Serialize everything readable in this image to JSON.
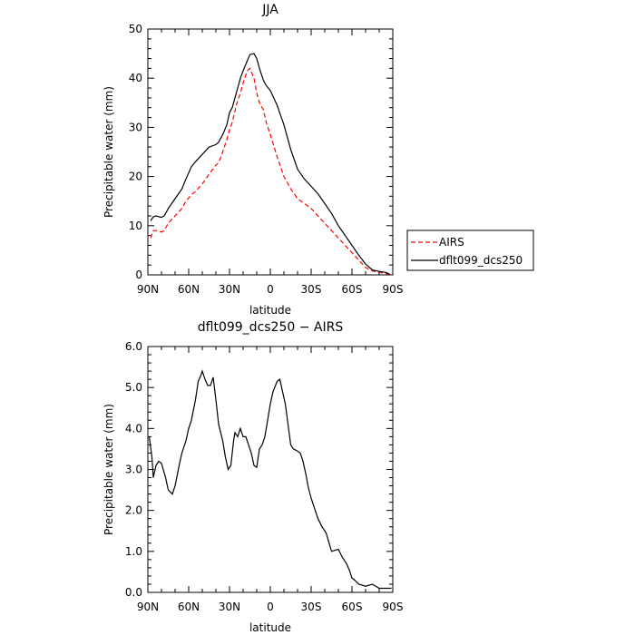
{
  "chart_data": [
    {
      "type": "line",
      "title": "JJA",
      "xlabel": "latitude",
      "ylabel": "Precipitable water (mm)",
      "xlim": [
        90,
        -90
      ],
      "ylim": [
        0,
        50
      ],
      "x_ticks": [
        90,
        60,
        30,
        0,
        -30,
        -60,
        -90
      ],
      "x_tick_labels": [
        "90N",
        "60N",
        "30N",
        "0",
        "30S",
        "60S",
        "90S"
      ],
      "y_ticks": [
        0,
        10,
        20,
        30,
        40,
        50
      ],
      "y_tick_labels": [
        "0",
        "10",
        "20",
        "30",
        "40",
        "50"
      ],
      "legend": {
        "placement": "outside-right",
        "entries": [
          "AIRS",
          "dflt099_dcs250"
        ]
      },
      "series": [
        {
          "name": "AIRS",
          "color": "#ff0000",
          "dash": "dashed",
          "x": [
            88,
            86,
            84,
            80,
            78,
            75,
            70,
            65,
            62,
            58,
            55,
            50,
            45,
            40,
            38,
            35,
            32,
            30,
            28,
            25,
            22,
            20,
            17,
            15,
            12,
            10,
            8,
            5,
            3,
            0,
            -5,
            -10,
            -15,
            -20,
            -25,
            -30,
            -35,
            -40,
            -45,
            -50,
            -55,
            -60,
            -65,
            -70,
            -75,
            -80,
            -85,
            -88
          ],
          "y": [
            7.5,
            9.0,
            9.0,
            8.7,
            9.0,
            10.5,
            12.0,
            13.5,
            15.0,
            16.3,
            17.0,
            18.5,
            20.5,
            22.3,
            22.8,
            25.0,
            27.5,
            29.5,
            31.0,
            34.5,
            37.0,
            39.0,
            41.5,
            42.0,
            40.0,
            37.0,
            35.0,
            33.5,
            31.0,
            28.5,
            24.0,
            20.0,
            17.5,
            15.5,
            14.5,
            13.5,
            12.0,
            10.5,
            9.0,
            7.5,
            6.0,
            4.5,
            3.0,
            1.5,
            0.8,
            0.5,
            0.3,
            0.0
          ]
        },
        {
          "name": "dflt099_dcs250",
          "color": "#000000",
          "dash": "solid",
          "x": [
            88,
            86,
            84,
            80,
            78,
            75,
            70,
            65,
            62,
            58,
            55,
            50,
            45,
            40,
            38,
            35,
            32,
            30,
            28,
            25,
            22,
            20,
            17,
            15,
            12,
            10,
            8,
            5,
            3,
            0,
            -5,
            -10,
            -15,
            -20,
            -25,
            -30,
            -35,
            -40,
            -45,
            -50,
            -55,
            -60,
            -65,
            -70,
            -75,
            -80,
            -85,
            -88
          ],
          "y": [
            11.0,
            11.8,
            12.0,
            11.7,
            12.0,
            13.5,
            15.5,
            17.5,
            19.5,
            22.0,
            23.0,
            24.5,
            26.0,
            26.5,
            27.0,
            28.5,
            30.5,
            33.0,
            34.0,
            37.0,
            40.0,
            41.5,
            43.5,
            44.8,
            45.0,
            44.0,
            42.0,
            39.5,
            38.5,
            37.5,
            34.5,
            30.5,
            25.5,
            21.5,
            19.5,
            18.0,
            16.5,
            14.5,
            12.5,
            10.0,
            8.0,
            6.0,
            4.0,
            2.2,
            1.0,
            0.7,
            0.5,
            0.1
          ]
        }
      ]
    },
    {
      "type": "line",
      "title": "dflt099_dcs250 − AIRS",
      "xlabel": "latitude",
      "ylabel": "Precipitable water (mm)",
      "xlim": [
        90,
        -90
      ],
      "ylim": [
        0,
        6
      ],
      "x_ticks": [
        90,
        60,
        30,
        0,
        -30,
        -60,
        -90
      ],
      "x_tick_labels": [
        "90N",
        "60N",
        "30N",
        "0",
        "30S",
        "60S",
        "90S"
      ],
      "y_ticks": [
        0,
        1,
        2,
        3,
        4,
        5,
        6
      ],
      "y_tick_labels": [
        "0.0",
        "1.0",
        "2.0",
        "3.0",
        "4.0",
        "5.0",
        "6.0"
      ],
      "series": [
        {
          "color": "#000000",
          "dash": "solid",
          "x": [
            89,
            87,
            86,
            84,
            82,
            80,
            77,
            75,
            72,
            70,
            67,
            65,
            62,
            60,
            58,
            55,
            53,
            51,
            50,
            48,
            46,
            44,
            42,
            40,
            38,
            35,
            33,
            31,
            29,
            27,
            26,
            24,
            22,
            20,
            18,
            16,
            14,
            12,
            10,
            8,
            6,
            4,
            2,
            0,
            -2,
            -5,
            -7,
            -9,
            -11,
            -13,
            -15,
            -17,
            -20,
            -22,
            -24,
            -26,
            -28,
            -30,
            -33,
            -35,
            -38,
            -41,
            -45,
            -50,
            -53,
            -56,
            -58,
            -60,
            -62,
            -65,
            -70,
            -75,
            -80,
            -85,
            -89
          ],
          "y": [
            3.8,
            3.3,
            2.8,
            3.1,
            3.2,
            3.15,
            2.8,
            2.5,
            2.4,
            2.6,
            3.1,
            3.4,
            3.7,
            4.0,
            4.2,
            4.7,
            5.15,
            5.3,
            5.4,
            5.2,
            5.05,
            5.05,
            5.25,
            4.7,
            4.1,
            3.7,
            3.3,
            3.0,
            3.1,
            3.7,
            3.9,
            3.8,
            4.0,
            3.8,
            3.8,
            3.6,
            3.4,
            3.1,
            3.05,
            3.5,
            3.6,
            3.8,
            4.2,
            4.6,
            4.9,
            5.15,
            5.2,
            4.9,
            4.6,
            4.1,
            3.6,
            3.5,
            3.45,
            3.4,
            3.2,
            2.9,
            2.55,
            2.3,
            2.0,
            1.8,
            1.6,
            1.45,
            1.0,
            1.05,
            0.85,
            0.7,
            0.55,
            0.35,
            0.3,
            0.2,
            0.15,
            0.2,
            0.1,
            0.1,
            0.1
          ]
        }
      ]
    }
  ]
}
